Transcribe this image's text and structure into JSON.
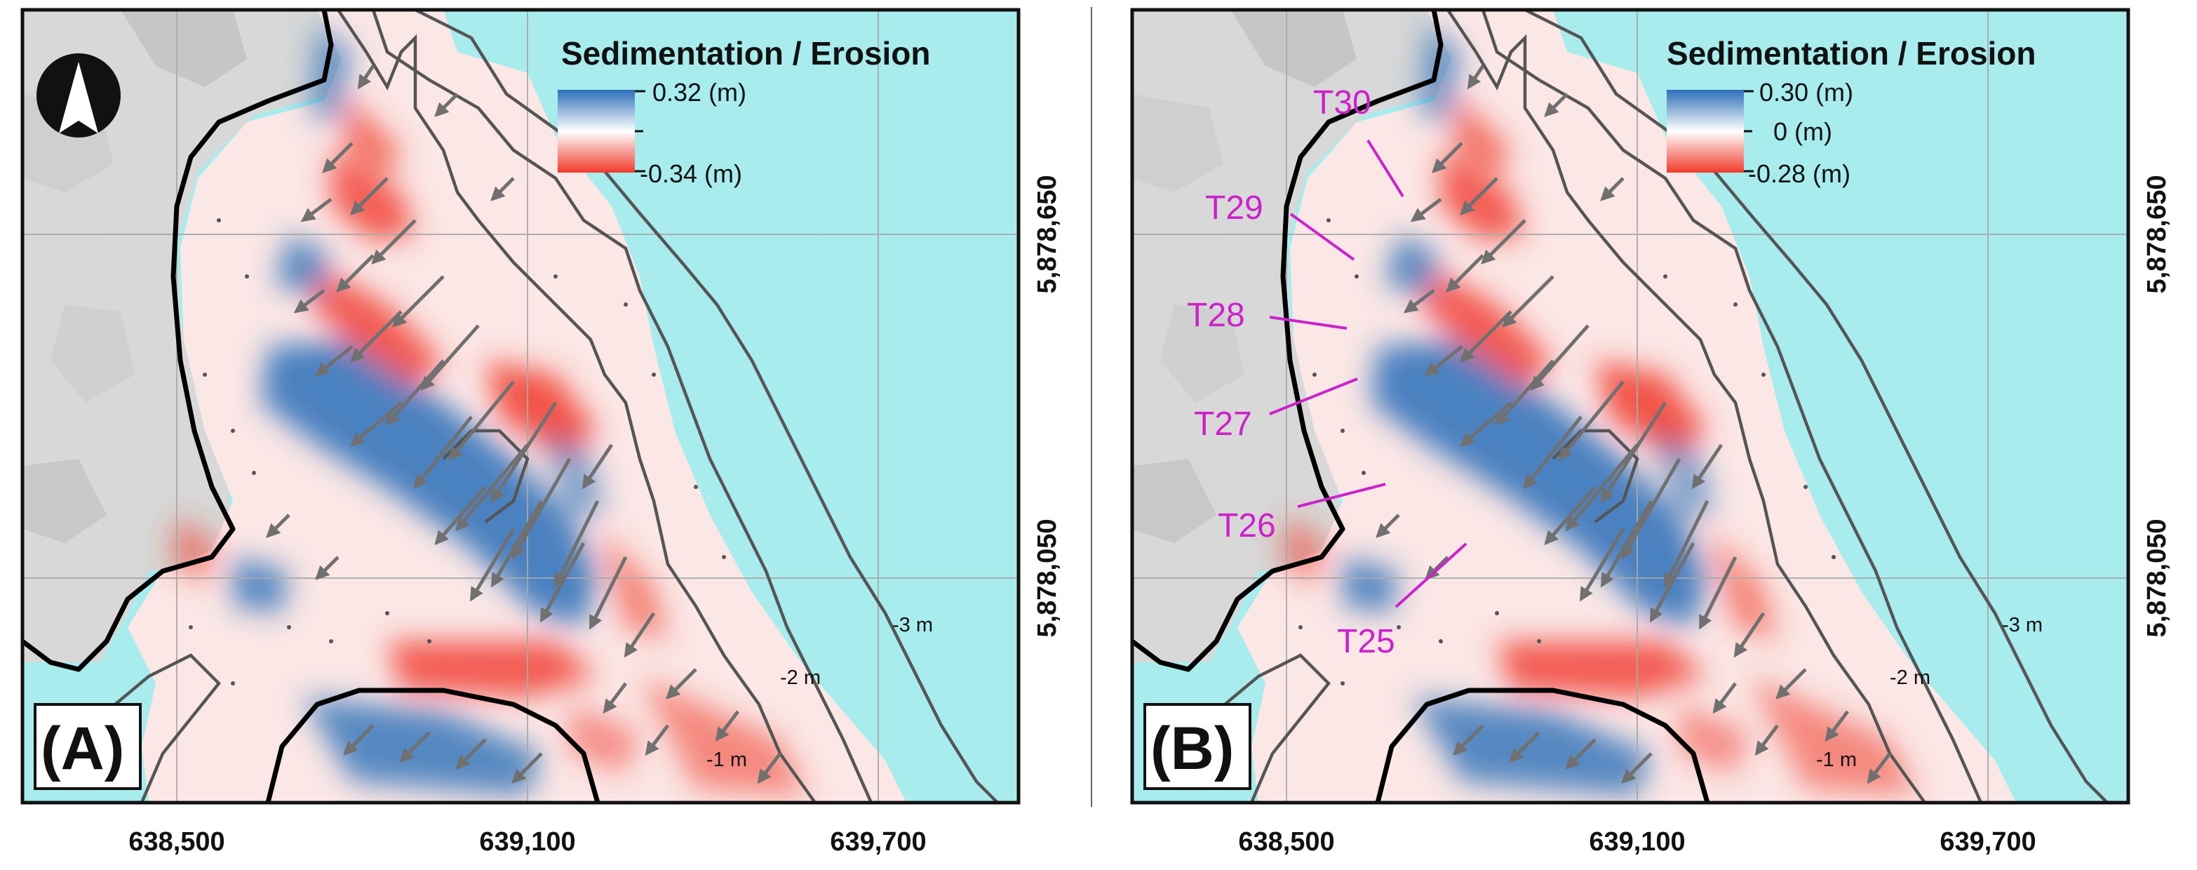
{
  "colors": {
    "water": "#a8ecee",
    "land": "#d9d9d9",
    "deposition": "#2c6fb8",
    "erosion": "#f03a2a",
    "transect": "#cc22cc",
    "contour": "#555555",
    "coastline": "#000000",
    "arrow": "#707070"
  },
  "x_axis_labels": [
    "638,500",
    "639,100",
    "639,700"
  ],
  "y_axis_labels": [
    "5,878,650",
    "5,878,050"
  ],
  "contour_labels": {
    "minus1": "-1 m",
    "minus2": "-2 m",
    "minus3": "-3 m"
  },
  "panels": [
    {
      "label": "(A)",
      "legend": {
        "title": "Sedimentation / Erosion",
        "max": "0.32 (m)",
        "mid": "",
        "min": "-0.34 (m)"
      }
    },
    {
      "label": "(B)",
      "legend": {
        "title": "Sedimentation / Erosion",
        "max": "0.30 (m)",
        "mid": "0 (m)",
        "min": "-0.28 (m)"
      },
      "transects": [
        "T30",
        "T29",
        "T28",
        "T27",
        "T26",
        "T25"
      ]
    }
  ]
}
